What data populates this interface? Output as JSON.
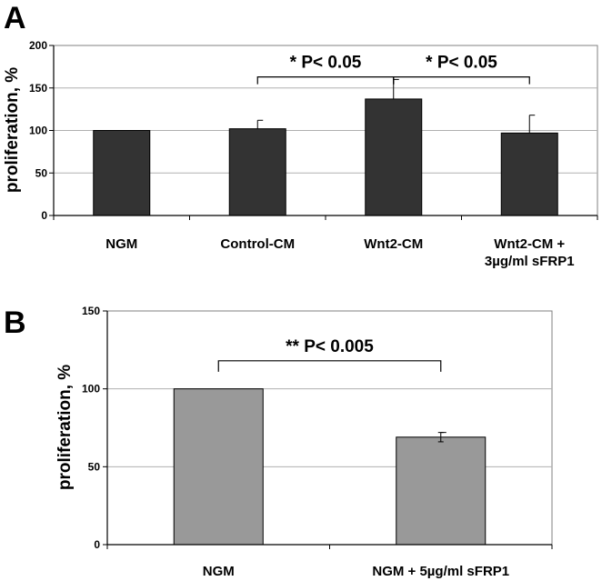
{
  "chart_data": [
    {
      "panel": "A",
      "type": "bar",
      "ylabel": "proliferation, %",
      "ylim": [
        0,
        200
      ],
      "yticks": [
        0,
        50,
        100,
        150,
        200
      ],
      "grid": true,
      "bar_color": "#333333",
      "categories": [
        [
          "NGM"
        ],
        [
          "Control-CM"
        ],
        [
          "Wnt2-CM"
        ],
        [
          "Wnt2-CM +",
          "3µg/ml sFRP1"
        ]
      ],
      "values": [
        100,
        102,
        137,
        97
      ],
      "errors": [
        0,
        10,
        23,
        21
      ],
      "annotations": [
        {
          "from": 1,
          "to": 2,
          "text": "* P< 0.05",
          "y": 163
        },
        {
          "from": 2,
          "to": 3,
          "text": "* P< 0.05",
          "y": 163
        }
      ]
    },
    {
      "panel": "B",
      "type": "bar",
      "ylabel": "proliferation, %",
      "ylim": [
        0,
        150
      ],
      "yticks": [
        0,
        50,
        100,
        150
      ],
      "grid": true,
      "bar_color": "#999999",
      "categories": [
        [
          "NGM"
        ],
        [
          "NGM + 5µg/ml sFRP1"
        ]
      ],
      "values": [
        100,
        69
      ],
      "errors": [
        0,
        3
      ],
      "annotations": [
        {
          "from": 0,
          "to": 1,
          "text": "** P< 0.005",
          "y": 118
        }
      ]
    }
  ]
}
